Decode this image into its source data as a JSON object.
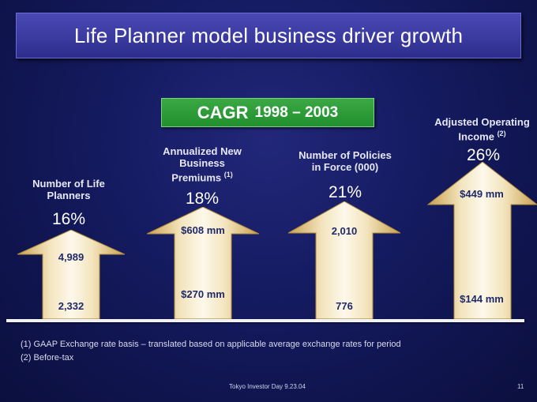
{
  "title": "Life Planner model business driver growth",
  "cagr": {
    "label": "CAGR",
    "years": "1998 – 2003"
  },
  "drivers": [
    {
      "label_lines": [
        "Number of Life",
        "Planners"
      ],
      "sup": "",
      "pct": "16%",
      "top_value": "4,989",
      "bottom_value": "2,332"
    },
    {
      "label_lines": [
        "Annualized New",
        "Business",
        "Premiums"
      ],
      "sup": "(1)",
      "pct": "18%",
      "top_value": "$608 mm",
      "bottom_value": "$270 mm"
    },
    {
      "label_lines": [
        "Number of Policies",
        "in Force (000)"
      ],
      "sup": "",
      "pct": "21%",
      "top_value": "2,010",
      "bottom_value": "776"
    },
    {
      "label_lines": [
        "Adjusted Operating",
        "Income"
      ],
      "sup": "(2)",
      "pct": "26%",
      "top_value": "$449 mm",
      "bottom_value": "$144 mm"
    }
  ],
  "footnotes": [
    "(1) GAAP Exchange rate basis – translated based on applicable average exchange rates for period",
    "(2) Before-tax"
  ],
  "footer": {
    "event": "Tokyo Investor Day 9.23.04",
    "page": "11"
  },
  "colors": {
    "background": "#141a5e",
    "title_bar": "#3a3aa0",
    "cagr_box": "#23902f",
    "arrow_light": "#fbf3dc",
    "arrow_dark": "#c9a050"
  }
}
